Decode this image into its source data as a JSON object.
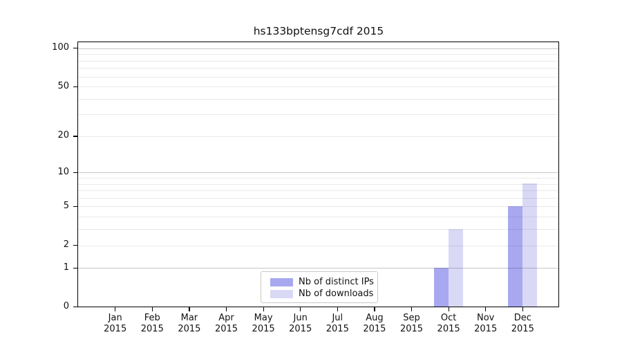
{
  "title": "hs133bptensg7cdf 2015",
  "colors": {
    "bar_distinct_ips": "#a8a8f0",
    "bar_downloads": "#d9d9f6",
    "grid_major": "#c6c6c6",
    "grid_minor": "#e9e9e9",
    "axis_frame": "#000000",
    "text": "#111111",
    "legend_border": "#c8c8c8",
    "background": "#ffffff"
  },
  "chart_data": {
    "type": "bar",
    "title": "hs133bptensg7cdf 2015",
    "categories": [
      "Jan 2015",
      "Feb 2015",
      "Mar 2015",
      "Apr 2015",
      "May 2015",
      "Jun 2015",
      "Jul 2015",
      "Aug 2015",
      "Sep 2015",
      "Oct 2015",
      "Nov 2015",
      "Dec 2015"
    ],
    "series": [
      {
        "name": "Nb of distinct IPs",
        "color": "#a8a8f0",
        "values": [
          0,
          0,
          0,
          0,
          0,
          0,
          0,
          0,
          0,
          1,
          0,
          5
        ]
      },
      {
        "name": "Nb of downloads",
        "color": "#d9d9f6",
        "values": [
          0,
          0,
          0,
          0,
          0,
          0,
          0,
          0,
          0,
          3,
          0,
          8
        ]
      }
    ],
    "xlabel": "",
    "ylabel": "",
    "yscale": "log10(value+1)",
    "ylim": [
      0,
      112
    ],
    "yticks_major": [
      0,
      1,
      2,
      5,
      10,
      20,
      50,
      100
    ],
    "yticks_minor": [
      3,
      4,
      6,
      7,
      8,
      9,
      30,
      40,
      60,
      70,
      80,
      90
    ],
    "yticks_emphasized_grid": [
      1,
      10,
      100
    ],
    "grid": "horizontal",
    "legend_position": "lower center"
  }
}
